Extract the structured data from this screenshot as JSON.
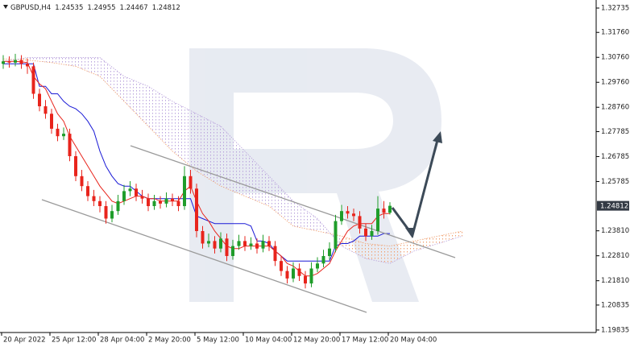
{
  "chart_data": {
    "type": "candlestick",
    "symbol": "GBPUSD,H4",
    "ylim": [
      1.19735,
      1.33058
    ],
    "xlim": [
      -0.5,
      97.5
    ],
    "yticks": [
      1.32735,
      {
        "value": 1.3176,
        "label": "1.31760"
      },
      {
        "value": 1.3076,
        "label": "1.30760"
      },
      {
        "value": 1.2976,
        "label": "1.29760"
      },
      {
        "value": 1.2876,
        "label": "1.28760"
      },
      1.27785,
      1.26785,
      1.25785,
      {
        "value": 1.2381,
        "label": "1.23810"
      },
      {
        "value": 1.2281,
        "label": "1.22810"
      },
      {
        "value": 1.2181,
        "label": "1.21810"
      },
      1.20835,
      1.19835
    ],
    "xticks": [
      {
        "value": 0,
        "label": "20 Apr 2022"
      },
      {
        "value": 8,
        "label": "25 Apr 12:00"
      },
      {
        "value": 16,
        "label": "28 Apr 04:00"
      },
      {
        "value": 24,
        "label": "2 May 20:00"
      },
      {
        "value": 32,
        "label": "5 May 12:00"
      },
      {
        "value": 40,
        "label": "10 May 04:00"
      },
      {
        "value": 48,
        "label": "12 May 20:00"
      },
      {
        "value": 56,
        "label": "17 May 12:00"
      },
      {
        "value": 64,
        "label": "20 May 04:00"
      }
    ],
    "colors": {
      "bull": "#1f9d2a",
      "bear": "#e8241c",
      "price_box": "#333a44"
    },
    "ohlc": [
      [
        1.305,
        1.3085,
        1.303,
        1.306
      ],
      [
        1.306,
        1.308,
        1.3035,
        1.3055
      ],
      [
        1.3055,
        1.309,
        1.304,
        1.3065
      ],
      [
        1.3065,
        1.3085,
        1.303,
        1.305
      ],
      [
        1.305,
        1.307,
        1.301,
        1.304
      ],
      [
        1.304,
        1.3055,
        1.291,
        1.293
      ],
      [
        1.293,
        1.295,
        1.286,
        1.288
      ],
      [
        1.288,
        1.2905,
        1.283,
        1.285
      ],
      [
        1.285,
        1.287,
        1.277,
        1.279
      ],
      [
        1.279,
        1.281,
        1.274,
        1.276
      ],
      [
        1.276,
        1.2795,
        1.2745,
        1.277
      ],
      [
        1.277,
        1.279,
        1.266,
        1.268
      ],
      [
        1.268,
        1.27,
        1.258,
        1.26
      ],
      [
        1.26,
        1.2625,
        1.254,
        1.256
      ],
      [
        1.256,
        1.258,
        1.25,
        1.252
      ],
      [
        1.252,
        1.2545,
        1.248,
        1.25
      ],
      [
        1.25,
        1.252,
        1.2455,
        1.248
      ],
      [
        1.248,
        1.25,
        1.241,
        1.243
      ],
      [
        1.243,
        1.2485,
        1.2415,
        1.246
      ],
      [
        1.246,
        1.2525,
        1.2445,
        1.25
      ],
      [
        1.25,
        1.2565,
        1.2485,
        1.254
      ],
      [
        1.254,
        1.258,
        1.252,
        1.255
      ],
      [
        1.255,
        1.257,
        1.25,
        1.252
      ],
      [
        1.252,
        1.2545,
        1.249,
        1.251
      ],
      [
        1.251,
        1.253,
        1.246,
        1.248
      ],
      [
        1.248,
        1.2525,
        1.2465,
        1.25
      ],
      [
        1.25,
        1.252,
        1.247,
        1.249
      ],
      [
        1.249,
        1.2535,
        1.2475,
        1.251
      ],
      [
        1.251,
        1.253,
        1.248,
        1.25
      ],
      [
        1.25,
        1.252,
        1.246,
        1.248
      ],
      [
        1.248,
        1.264,
        1.2465,
        1.26
      ],
      [
        1.26,
        1.2625,
        1.253,
        1.255
      ],
      [
        1.255,
        1.257,
        1.2355,
        1.238
      ],
      [
        1.238,
        1.24,
        1.231,
        1.233
      ],
      [
        1.233,
        1.237,
        1.2315,
        1.234
      ],
      [
        1.234,
        1.236,
        1.229,
        1.231
      ],
      [
        1.231,
        1.2375,
        1.2295,
        1.235
      ],
      [
        1.235,
        1.237,
        1.226,
        1.228
      ],
      [
        1.228,
        1.2345,
        1.2265,
        1.232
      ],
      [
        1.232,
        1.2365,
        1.2305,
        1.234
      ],
      [
        1.234,
        1.236,
        1.23,
        1.232
      ],
      [
        1.232,
        1.2355,
        1.2305,
        1.233
      ],
      [
        1.233,
        1.235,
        1.229,
        1.231
      ],
      [
        1.231,
        1.2365,
        1.2295,
        1.234
      ],
      [
        1.234,
        1.236,
        1.23,
        1.232
      ],
      [
        1.232,
        1.234,
        1.224,
        1.226
      ],
      [
        1.226,
        1.228,
        1.22,
        1.222
      ],
      [
        1.222,
        1.224,
        1.217,
        1.219
      ],
      [
        1.219,
        1.2255,
        1.2175,
        1.223
      ],
      [
        1.223,
        1.225,
        1.218,
        1.22
      ],
      [
        1.22,
        1.222,
        1.215,
        1.217
      ],
      [
        1.217,
        1.2255,
        1.2155,
        1.223
      ],
      [
        1.223,
        1.2275,
        1.2215,
        1.225
      ],
      [
        1.225,
        1.2305,
        1.2235,
        1.228
      ],
      [
        1.228,
        1.2335,
        1.2265,
        1.231
      ],
      [
        1.231,
        1.2445,
        1.2295,
        1.242
      ],
      [
        1.242,
        1.2485,
        1.2405,
        1.246
      ],
      [
        1.246,
        1.248,
        1.243,
        1.245
      ],
      [
        1.245,
        1.247,
        1.242,
        1.244
      ],
      [
        1.244,
        1.246,
        1.237,
        1.239
      ],
      [
        1.239,
        1.241,
        1.234,
        1.236
      ],
      [
        1.236,
        1.2405,
        1.2345,
        1.238
      ],
      [
        1.238,
        1.252,
        1.2365,
        1.247
      ],
      [
        1.247,
        1.25,
        1.243,
        1.24535
      ],
      [
        1.24535,
        1.24955,
        1.24467,
        1.24812
      ]
    ],
    "tenkan": {
      "color": "#e8241c",
      "values": [
        1.306,
        1.306,
        1.306,
        1.3058,
        1.3055,
        1.3,
        1.297,
        1.295,
        1.29,
        1.285,
        1.282,
        1.276,
        1.272,
        1.268,
        1.264,
        1.26,
        1.256,
        1.253,
        1.25,
        1.249,
        1.25,
        1.251,
        1.252,
        1.252,
        1.251,
        1.251,
        1.25,
        1.25,
        1.25,
        1.25,
        1.254,
        1.256,
        1.25,
        1.245,
        1.242,
        1.238,
        1.235,
        1.232,
        1.231,
        1.231,
        1.232,
        1.232,
        1.232,
        1.232,
        1.232,
        1.23,
        1.228,
        1.225,
        1.224,
        1.222,
        1.22,
        1.22,
        1.221,
        1.223,
        1.225,
        1.23,
        1.234,
        1.238,
        1.24,
        1.241,
        1.241,
        1.241,
        1.244,
        1.245,
        1.245
      ]
    },
    "kijun": {
      "color": "#1a1ad6",
      "values": [
        1.305,
        1.305,
        1.305,
        1.305,
        1.305,
        1.305,
        1.296,
        1.296,
        1.293,
        1.293,
        1.29,
        1.288,
        1.287,
        1.285,
        1.282,
        1.278,
        1.27,
        1.264,
        1.26,
        1.257,
        1.256,
        1.256,
        1.254,
        1.252,
        1.251,
        1.251,
        1.251,
        1.251,
        1.251,
        1.251,
        1.251,
        1.251,
        1.244,
        1.243,
        1.242,
        1.241,
        1.241,
        1.241,
        1.241,
        1.241,
        1.241,
        1.24,
        1.234,
        1.234,
        1.233,
        1.23,
        1.228,
        1.226,
        1.226,
        1.226,
        1.226,
        1.226,
        1.226,
        1.226,
        1.226,
        1.232,
        1.233,
        1.233,
        1.234,
        1.236,
        1.236,
        1.236,
        1.236,
        1.237,
        1.237
      ]
    },
    "cloud": {
      "x": [
        0,
        4,
        8,
        12,
        16,
        20,
        24,
        28,
        32,
        36,
        40,
        44,
        48,
        52,
        56,
        60,
        64,
        68,
        72,
        76
      ],
      "span_a": {
        "color": "#f0a070",
        "values": [
          1.307,
          1.3065,
          1.3055,
          1.304,
          1.3,
          1.29,
          1.28,
          1.27,
          1.262,
          1.256,
          1.252,
          1.248,
          1.24,
          1.238,
          1.236,
          1.233,
          1.232,
          1.234,
          1.236,
          1.238
        ]
      },
      "span_b": {
        "color": "#b9a2dc",
        "values": [
          1.306,
          1.3075,
          1.3075,
          1.3075,
          1.3075,
          1.3,
          1.296,
          1.29,
          1.285,
          1.28,
          1.27,
          1.26,
          1.25,
          1.243,
          1.232,
          1.227,
          1.225,
          1.23,
          1.233,
          1.236
        ]
      }
    }
  }
}
